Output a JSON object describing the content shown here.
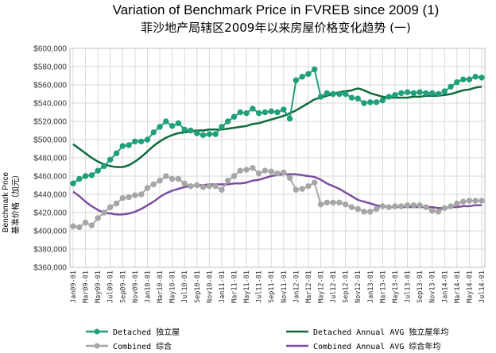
{
  "colors": {
    "detached": "#1fa07a",
    "detached_avg": "#0d6b3c",
    "combined": "#a6a6a6",
    "combined_avg": "#7b4fa0"
  },
  "chart_data": {
    "type": "line",
    "title": "Variation of Benchmark Price in FVREB since 2009 (1)",
    "subtitle": "菲沙地产局辖区2009年以来房屋价格变化趋势 (一)",
    "ylabel_en": "Benchmark Price",
    "ylabel_zh": "基准价格（加元）",
    "ylim": [
      360000,
      600000
    ],
    "yticks": [
      "$360,000",
      "$380,000",
      "$400,000",
      "$420,000",
      "$440,000",
      "$460,000",
      "$480,000",
      "$500,000",
      "$520,000",
      "$540,000",
      "$560,000",
      "$580,000",
      "$600,000"
    ],
    "grid": true,
    "legend_position": "bottom",
    "categories": [
      "Jan09",
      "Feb09",
      "Mar09",
      "Apr09",
      "May09",
      "Jun09",
      "Jul09",
      "Aug09",
      "Sep09",
      "Oct09",
      "Nov09",
      "Dec09",
      "Jan10",
      "Feb10",
      "Mar10",
      "Apr10",
      "May10",
      "Jun10",
      "Jul10",
      "Aug10",
      "Sep10",
      "Oct10",
      "Nov10",
      "Dec10",
      "Jan11",
      "Feb11",
      "Mar11",
      "Apr11",
      "May11",
      "Jun11",
      "Jul11",
      "Aug11",
      "Sep11",
      "Oct11",
      "Nov11",
      "Dec11",
      "Jan12",
      "Feb12",
      "Mar12",
      "Apr12",
      "May12",
      "Jun12",
      "Jul12",
      "Aug12",
      "Sep12",
      "Oct12",
      "Nov12",
      "Dec12",
      "Jan13",
      "Feb13",
      "Mar13",
      "Apr13",
      "May13",
      "Jun13",
      "Jul13",
      "Aug13",
      "Sep13",
      "Oct13",
      "Nov13",
      "Dec13",
      "Jan14",
      "Feb14",
      "Mar14",
      "Apr14",
      "May14",
      "Jun14",
      "Jul14"
    ],
    "x_tick_labels": [
      "Jan09-01",
      "Mar09-01",
      "May09-01",
      "Jul09-01",
      "Sep09-01",
      "Nov09-01",
      "Jan10-01",
      "Mar10-01",
      "May10-01",
      "Jul10-01",
      "Sep10-01",
      "Nov10-01",
      "Jan11-01",
      "Mar11-01",
      "May11-01",
      "Jul11-01",
      "Sep11-01",
      "Nov11-01",
      "Jan12-01",
      "Mar12-01",
      "May12-01",
      "Jul12-01",
      "Sep12-01",
      "Nov12-01",
      "Jan13-01",
      "Mar13-01",
      "May13-01",
      "Jul13-01",
      "Sep13-01",
      "Nov13-01",
      "Jan14-01",
      "Mar14-01",
      "May14-01",
      "Jul14-01"
    ],
    "series": [
      {
        "name": "Detached 独立屋",
        "key": "detached",
        "markers": true,
        "values": [
          452000,
          457000,
          460000,
          461000,
          466000,
          471000,
          478000,
          485000,
          493000,
          494000,
          498000,
          498000,
          500000,
          508000,
          514000,
          520000,
          515000,
          518000,
          511000,
          510000,
          507000,
          505000,
          506000,
          506000,
          514000,
          520000,
          525000,
          530000,
          529000,
          534000,
          529000,
          530000,
          531000,
          530000,
          533000,
          523000,
          565000,
          569000,
          572000,
          577000,
          547000,
          551000,
          550000,
          550000,
          550000,
          546000,
          545000,
          540000,
          541000,
          541000,
          543000,
          547000,
          549000,
          551000,
          552000,
          551000,
          552000,
          551000,
          551000,
          550000,
          553000,
          558000,
          563000,
          566000,
          566000,
          569000,
          568000
        ]
      },
      {
        "name": "Combined 综合",
        "key": "combined",
        "markers": true,
        "values": [
          405000,
          404000,
          409000,
          406000,
          414000,
          420000,
          426000,
          430000,
          436000,
          437000,
          439000,
          440000,
          447000,
          451000,
          455000,
          460000,
          457000,
          457000,
          452000,
          449000,
          450000,
          448000,
          449000,
          449000,
          445000,
          455000,
          460000,
          466000,
          467000,
          469000,
          463000,
          466000,
          465000,
          463000,
          464000,
          458000,
          445000,
          446000,
          449000,
          453000,
          429000,
          431000,
          431000,
          431000,
          429000,
          426000,
          424000,
          421000,
          421000,
          424000,
          427000,
          426000,
          427000,
          427000,
          428000,
          428000,
          428000,
          426000,
          422000,
          421000,
          425000,
          427000,
          430000,
          432000,
          433000,
          433000,
          433000
        ]
      },
      {
        "name": "Detached Annual AVG 独立屋年均",
        "key": "detached_avg",
        "markers": false,
        "values": [
          495000,
          490000,
          485000,
          480000,
          476000,
          473000,
          471000,
          470000,
          470000,
          472000,
          476000,
          481000,
          487000,
          493000,
          498000,
          502000,
          505000,
          507000,
          508000,
          509000,
          510000,
          510000,
          511000,
          511000,
          511000,
          512000,
          513000,
          514000,
          515000,
          517000,
          518000,
          520000,
          522000,
          524000,
          526000,
          529000,
          532000,
          536000,
          540000,
          544000,
          546000,
          548000,
          550000,
          552000,
          553000,
          554000,
          556000,
          554000,
          551000,
          549000,
          547000,
          546000,
          546000,
          546000,
          546000,
          547000,
          547000,
          548000,
          548000,
          548000,
          549000,
          550000,
          552000,
          554000,
          555000,
          557000,
          558000
        ]
      },
      {
        "name": "Combined Annual AVG 综合年均",
        "key": "combined_avg",
        "markers": false,
        "values": [
          443000,
          438000,
          432000,
          427000,
          423000,
          420000,
          419000,
          418000,
          418000,
          419000,
          421000,
          424000,
          428000,
          432000,
          437000,
          441000,
          444000,
          446000,
          448000,
          449000,
          450000,
          450000,
          451000,
          451000,
          451000,
          451000,
          452000,
          452000,
          453000,
          455000,
          456000,
          458000,
          460000,
          461000,
          462000,
          462000,
          462000,
          461000,
          460000,
          459000,
          456000,
          452000,
          449000,
          446000,
          442000,
          438000,
          434000,
          432000,
          430000,
          428000,
          427000,
          426000,
          426000,
          426000,
          426000,
          426000,
          426000,
          426000,
          426000,
          425000,
          425000,
          426000,
          426000,
          427000,
          427000,
          428000,
          428000
        ]
      }
    ]
  }
}
